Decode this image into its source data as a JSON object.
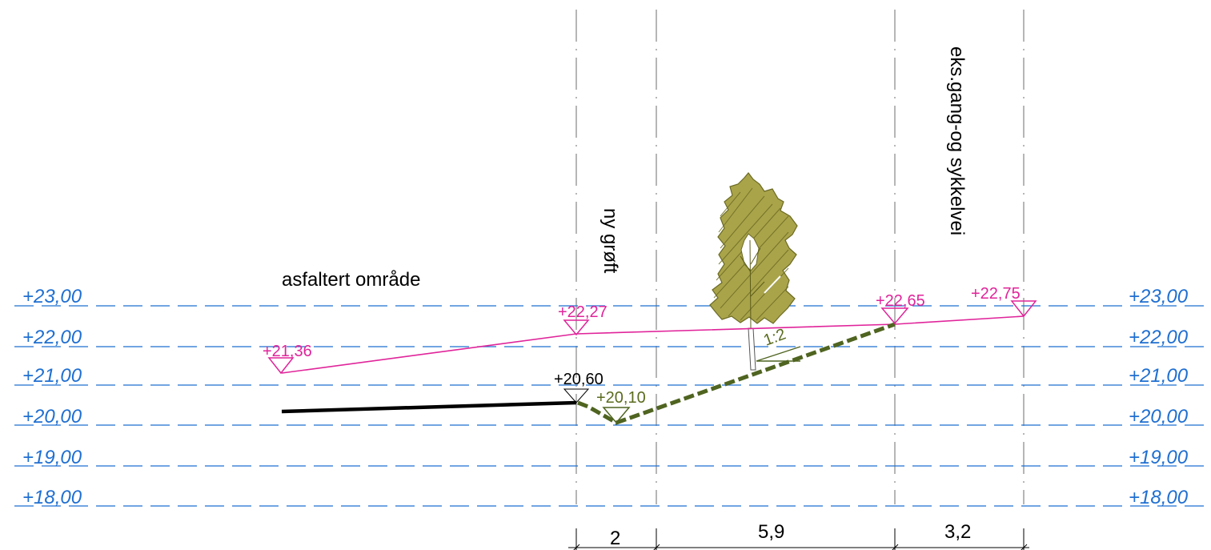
{
  "level_lines": {
    "color": "#1f6fd1",
    "labels": [
      "+23,00",
      "+22,00",
      "+21,00",
      "+20,00",
      "+19,00",
      "+18,00"
    ]
  },
  "area_labels": {
    "asphalt": "asfaltert område",
    "ditch": "ny grøft",
    "path": "eks.gang-og sykkelvei"
  },
  "elevations": {
    "color_terrain": "#e0249a",
    "color_ditch": "#5a6b1e",
    "e1": "+21,36",
    "e2": "+22,27",
    "e3": "+22,65",
    "e4": "+22,75",
    "asphalt_edge": "+20,60",
    "ditch_bottom": "+20,10"
  },
  "slope": "1:2",
  "dimensions": [
    "2",
    "5,9",
    "3,2"
  ],
  "tree": {
    "icon": "birch-tree-icon",
    "color": "#a9a44a"
  }
}
